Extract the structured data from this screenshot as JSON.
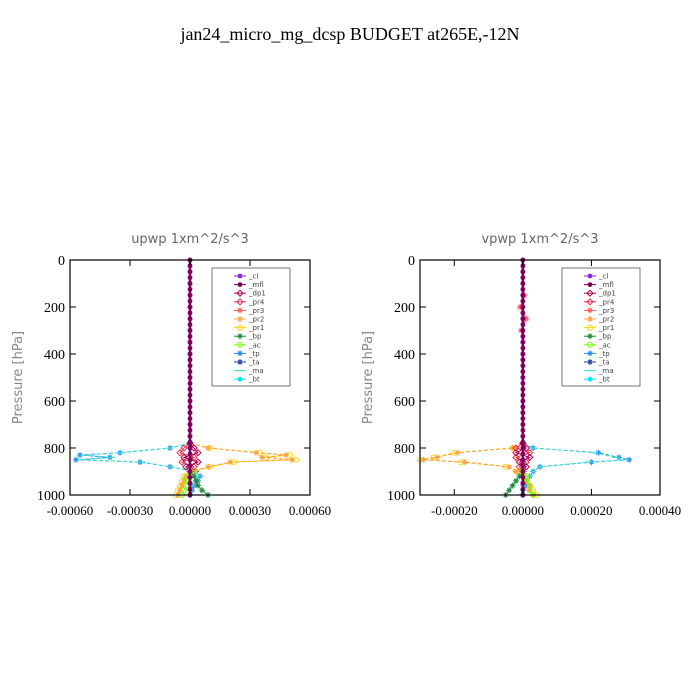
{
  "figure": {
    "title": "jan24_micro_mg_dcsp  BUDGET at265E,-12N"
  },
  "legend_entries": [
    {
      "name": "_cl",
      "color": "#8a2be2",
      "marker": "dot"
    },
    {
      "name": "_mfl",
      "color": "#800060",
      "marker": "dot"
    },
    {
      "name": "_dp1",
      "color": "#b0004a",
      "marker": "diamond"
    },
    {
      "name": "_pr4",
      "color": "#e0304a",
      "marker": "diamond"
    },
    {
      "name": "_pr3",
      "color": "#ff5a5a",
      "marker": "star"
    },
    {
      "name": "_pr2",
      "color": "#ffa040",
      "marker": "star"
    },
    {
      "name": "_pr1",
      "color": "#ffd700",
      "marker": "circle"
    },
    {
      "name": "_bp",
      "color": "#1a8a3a",
      "marker": "star"
    },
    {
      "name": "_ac",
      "color": "#7cfc00",
      "marker": "circle"
    },
    {
      "name": "_tp",
      "color": "#1e90ff",
      "marker": "star"
    },
    {
      "name": "_ta",
      "color": "#1a3fa0",
      "marker": "star"
    },
    {
      "name": "_ma",
      "color": "#40e0d0",
      "marker": "dash"
    },
    {
      "name": "_bt",
      "color": "#00e5ff",
      "marker": "dot"
    }
  ],
  "chart_data": [
    {
      "type": "line",
      "title": "upwp   1xm^2/s^3",
      "ylabel": "Pressure [hPa]",
      "xlabel": "",
      "xlim": [
        -0.0006,
        0.0006
      ],
      "ylim": [
        1000,
        0
      ],
      "xticks": [
        -0.0006,
        -0.0003,
        0.0,
        0.0003,
        0.0006
      ],
      "xtick_labels": [
        "-0.00060",
        "-0.00030",
        "0.00000",
        "0.00030",
        "0.00060"
      ],
      "yticks": [
        0,
        200,
        400,
        600,
        800,
        1000
      ],
      "ytick_labels": [
        "0",
        "200",
        "400",
        "600",
        "800",
        "1000"
      ],
      "legend_position": "top-right",
      "series": [
        {
          "name": "_tp",
          "y": [
            780,
            800,
            820,
            830,
            840,
            850,
            860,
            880,
            900,
            920,
            940,
            960,
            980,
            1000
          ],
          "x": [
            0.0,
            -0.0001,
            -0.00035,
            -0.00055,
            -0.0004,
            -0.00057,
            -0.00025,
            -0.0001,
            3e-05,
            5e-05,
            4e-05,
            2e-05,
            1e-05,
            0.0
          ]
        },
        {
          "name": "_ma",
          "y": [
            780,
            800,
            820,
            830,
            840,
            850,
            860,
            880,
            900,
            920,
            940,
            960,
            980,
            1000
          ],
          "x": [
            0.0,
            -0.0001,
            -0.00034,
            -0.00053,
            -0.00039,
            -0.00055,
            -0.00024,
            -0.0001,
            2e-05,
            4e-05,
            3e-05,
            1e-05,
            0.0,
            0.0
          ]
        },
        {
          "name": "_pr1",
          "y": [
            780,
            800,
            820,
            830,
            840,
            850,
            860,
            880,
            900,
            920,
            940,
            960,
            980,
            1000
          ],
          "x": [
            0.0,
            0.0001,
            0.00035,
            0.0005,
            0.00038,
            0.00053,
            0.00022,
            0.0001,
            2e-05,
            -3e-05,
            -4e-05,
            -5e-05,
            -6e-05,
            -7e-05
          ]
        },
        {
          "name": "_pr2",
          "y": [
            780,
            800,
            820,
            830,
            840,
            850,
            860,
            880,
            900,
            920,
            940,
            960,
            980,
            1000
          ],
          "x": [
            0.0,
            9e-05,
            0.00033,
            0.00048,
            0.00036,
            0.00051,
            0.0002,
            9e-05,
            1e-05,
            -2e-05,
            -3e-05,
            -4e-05,
            -5e-05,
            -6e-05
          ]
        },
        {
          "name": "_pr4",
          "y": [
            780,
            800,
            820,
            840,
            860,
            880,
            900
          ],
          "x": [
            0.0,
            -3e-05,
            -5e-05,
            2e-05,
            -4e-05,
            2e-05,
            0.0
          ]
        },
        {
          "name": "_dp1",
          "y": [
            780,
            800,
            820,
            840,
            860,
            880,
            900
          ],
          "x": [
            0.0,
            2e-05,
            4e-05,
            -3e-05,
            4e-05,
            -2e-05,
            0.0
          ]
        },
        {
          "name": "_bp",
          "y": [
            900,
            920,
            940,
            960,
            980,
            1000
          ],
          "x": [
            0.0,
            2e-05,
            3e-05,
            4e-05,
            6e-05,
            9e-05
          ]
        },
        {
          "name": "_ac",
          "y": [
            900,
            920,
            940,
            960,
            980,
            1000
          ],
          "x": [
            0.0,
            -1e-05,
            -2e-05,
            -2e-05,
            -3e-05,
            -4e-05
          ]
        },
        {
          "name": "_cl",
          "y": [
            0,
            50,
            100,
            150,
            200,
            250,
            300,
            350,
            400,
            450,
            500,
            550,
            600,
            650,
            700,
            750,
            800,
            850,
            900,
            950,
            1000
          ],
          "x": [
            0,
            0,
            0,
            0,
            0,
            0,
            0,
            0,
            0,
            0,
            0,
            0,
            0,
            0,
            0,
            0,
            0,
            0,
            0,
            0,
            0
          ]
        },
        {
          "name": "_mfl",
          "y": [
            0,
            25,
            50,
            75,
            100,
            125,
            150,
            175,
            200,
            225,
            250,
            275,
            300,
            325,
            350,
            375,
            400,
            425,
            450,
            475,
            500,
            525,
            550,
            575,
            600,
            625,
            650,
            675,
            700,
            725,
            750,
            775,
            800,
            825,
            850,
            875,
            900,
            925,
            950,
            975,
            1000
          ],
          "x": [
            0,
            0,
            0,
            0,
            0,
            0,
            0,
            0,
            0,
            0,
            0,
            0,
            0,
            0,
            0,
            0,
            0,
            0,
            0,
            0,
            0,
            0,
            0,
            0,
            0,
            0,
            0,
            0,
            0,
            0,
            0,
            0,
            0,
            0,
            0,
            0,
            0,
            0,
            0,
            0,
            0
          ]
        }
      ]
    },
    {
      "type": "line",
      "title": "vpwp   1xm^2/s^3",
      "ylabel": "Pressure [hPa]",
      "xlabel": "",
      "xlim": [
        -0.0003,
        0.0004
      ],
      "ylim": [
        1000,
        0
      ],
      "xticks": [
        -0.0002,
        0.0,
        0.0002,
        0.0004
      ],
      "xtick_labels": [
        "-0.00020",
        "0.00000",
        "0.00020",
        "0.00040"
      ],
      "yticks": [
        0,
        200,
        400,
        600,
        800,
        1000
      ],
      "ytick_labels": [
        "0",
        "200",
        "400",
        "600",
        "800",
        "1000"
      ],
      "legend_position": "top-right",
      "series": [
        {
          "name": "_tp",
          "y": [
            780,
            800,
            820,
            840,
            850,
            860,
            880,
            900,
            920,
            940,
            960,
            980,
            1000
          ],
          "x": [
            0.0,
            3e-05,
            0.00022,
            0.00028,
            0.00031,
            0.0002,
            5e-05,
            3e-05,
            2e-05,
            1e-05,
            1e-05,
            0.0,
            0.0
          ]
        },
        {
          "name": "_ma",
          "y": [
            780,
            800,
            820,
            840,
            850,
            860,
            880,
            900,
            920,
            940,
            960,
            980,
            1000
          ],
          "x": [
            0.0,
            3e-05,
            0.00021,
            0.00027,
            0.0003,
            0.00019,
            5e-05,
            3e-05,
            2e-05,
            1e-05,
            0.0,
            0.0,
            0.0
          ]
        },
        {
          "name": "_pr1",
          "y": [
            780,
            800,
            820,
            840,
            850,
            860,
            880,
            900,
            920,
            940,
            960,
            980,
            1000
          ],
          "x": [
            0.0,
            -3e-05,
            -0.0002,
            -0.00026,
            -0.0003,
            -0.00018,
            -5e-05,
            -2e-05,
            0.0,
            1e-05,
            2e-05,
            3e-05,
            4e-05
          ]
        },
        {
          "name": "_pr2",
          "y": [
            780,
            800,
            820,
            840,
            850,
            860,
            880,
            900,
            920,
            940,
            960,
            980,
            1000
          ],
          "x": [
            0.0,
            -3e-05,
            -0.00019,
            -0.00025,
            -0.00029,
            -0.00017,
            -4e-05,
            -2e-05,
            0.0,
            1e-05,
            2e-05,
            2e-05,
            3e-05
          ]
        },
        {
          "name": "_pr4",
          "y": [
            780,
            800,
            820,
            840,
            860,
            880,
            900
          ],
          "x": [
            0.0,
            -2e-05,
            2e-05,
            -2e-05,
            1e-05,
            -1e-05,
            0.0
          ]
        },
        {
          "name": "_dp1",
          "y": [
            780,
            800,
            820,
            840,
            860,
            880,
            900
          ],
          "x": [
            0.0,
            1e-05,
            -2e-05,
            2e-05,
            -1e-05,
            1e-05,
            0.0
          ]
        },
        {
          "name": "_bp",
          "y": [
            900,
            920,
            940,
            960,
            980,
            1000
          ],
          "x": [
            0.0,
            -1e-05,
            -2e-05,
            -3e-05,
            -4e-05,
            -5e-05
          ]
        },
        {
          "name": "_ac",
          "y": [
            900,
            920,
            940,
            960,
            980,
            1000
          ],
          "x": [
            0.0,
            1e-05,
            1e-05,
            2e-05,
            2e-05,
            3e-05
          ]
        },
        {
          "name": "_pr3",
          "y": [
            150,
            200,
            250,
            300
          ],
          "x": [
            5e-06,
            -8e-06,
            1e-05,
            -5e-06
          ]
        },
        {
          "name": "_cl",
          "y": [
            0,
            50,
            100,
            150,
            200,
            250,
            300,
            350,
            400,
            450,
            500,
            550,
            600,
            650,
            700,
            750,
            800,
            850,
            900,
            950,
            1000
          ],
          "x": [
            0,
            0,
            0,
            0,
            0,
            0,
            0,
            0,
            0,
            0,
            0,
            0,
            0,
            0,
            0,
            0,
            0,
            0,
            0,
            0,
            0
          ]
        },
        {
          "name": "_mfl",
          "y": [
            0,
            25,
            50,
            75,
            100,
            125,
            150,
            175,
            200,
            225,
            250,
            275,
            300,
            325,
            350,
            375,
            400,
            425,
            450,
            475,
            500,
            525,
            550,
            575,
            600,
            625,
            650,
            675,
            700,
            725,
            750,
            775,
            800,
            825,
            850,
            875,
            900,
            925,
            950,
            975,
            1000
          ],
          "x": [
            0,
            0,
            0,
            0,
            0,
            0,
            0,
            0,
            0,
            0,
            0,
            0,
            0,
            0,
            0,
            0,
            0,
            0,
            0,
            0,
            0,
            0,
            0,
            0,
            0,
            0,
            0,
            0,
            0,
            0,
            0,
            0,
            0,
            0,
            0,
            0,
            0,
            0,
            0,
            0,
            0
          ]
        }
      ]
    }
  ]
}
